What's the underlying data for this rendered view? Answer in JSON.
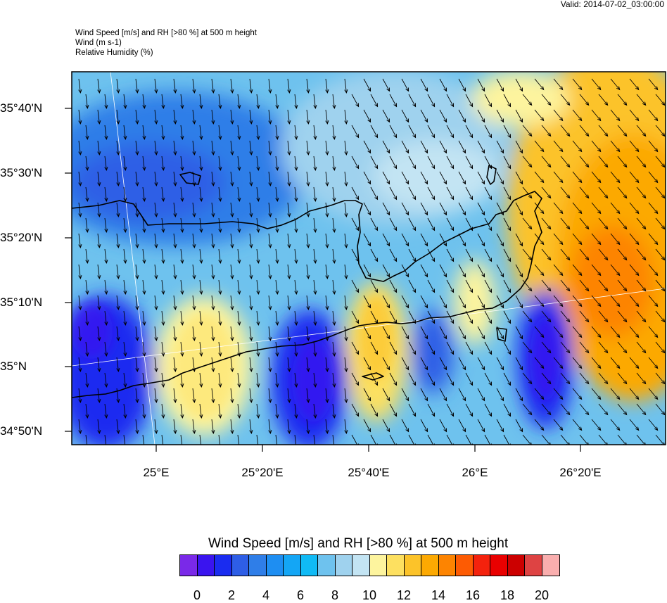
{
  "valid_time": "Valid: 2014-07-02_03:00:00",
  "header": {
    "line1": "Wind Speed [m/s] and RH [>80 %] at 500 m height",
    "line2": "Wind   (m s-1)",
    "line3": "Relative Humidity   (%)"
  },
  "axes": {
    "lat_labels": [
      "35°40'N",
      "35°30'N",
      "35°20'N",
      "35°10'N",
      "35°N",
      "34°50'N"
    ],
    "lon_labels": [
      "25°E",
      "25°20'E",
      "25°40'E",
      "26°E",
      "26°20'E"
    ]
  },
  "colorbar": {
    "title": "Wind Speed [m/s] and RH [>80 %] at 500 m height",
    "labels": [
      "0",
      "2",
      "4",
      "6",
      "8",
      "10",
      "12",
      "14",
      "16",
      "18",
      "20"
    ],
    "colors": [
      "#7a29e8",
      "#3a14ef",
      "#1a2cf0",
      "#2e5ee6",
      "#2f7ee8",
      "#1e8ef2",
      "#14a6f5",
      "#10baf5",
      "#6ec2ee",
      "#9fd2ee",
      "#c3e4f3",
      "#fdf49e",
      "#fde060",
      "#fcc329",
      "#fca902",
      "#fd8401",
      "#fd5b03",
      "#f4220d",
      "#e90000",
      "#cc0000",
      "#de4343",
      "#f9aeae"
    ]
  },
  "colors": {
    "coast": "#000000",
    "arrow": "#000000",
    "gridline": "#ffffff"
  }
}
